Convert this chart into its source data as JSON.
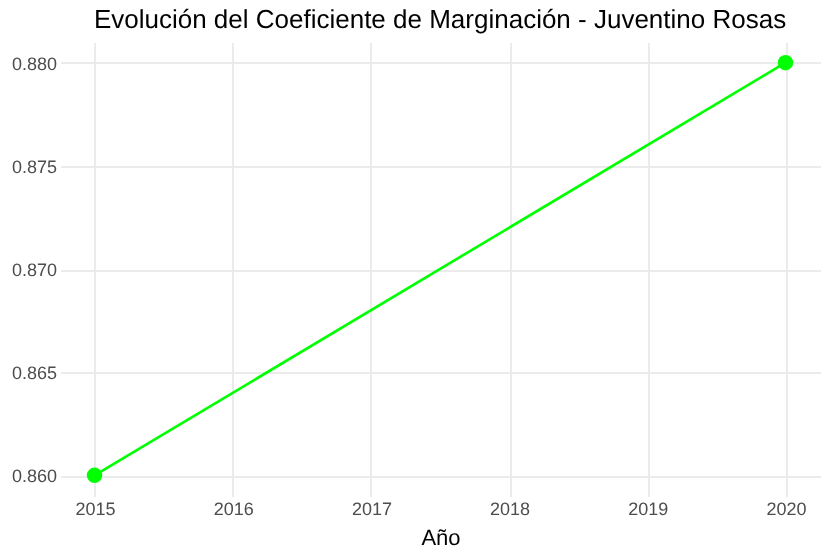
{
  "chart_data": {
    "type": "line",
    "title": "Evolución del Coeficiente de Marginación - Juventino Rosas",
    "xlabel": "Año",
    "x": [
      2015,
      2020
    ],
    "series": [
      {
        "color": "#00ff00",
        "values": [
          0.86,
          0.88
        ]
      }
    ],
    "xlim": [
      2014.75,
      2020.25
    ],
    "xticks": [
      2015,
      2016,
      2017,
      2018,
      2019,
      2020
    ],
    "ylim": [
      0.859,
      0.881
    ],
    "yticks": [
      {
        "value": 0.86,
        "label": "0.860"
      },
      {
        "value": 0.865,
        "label": "0.865"
      },
      {
        "value": 0.87,
        "label": "0.870"
      },
      {
        "value": 0.875,
        "label": "0.875"
      },
      {
        "value": 0.88,
        "label": "0.880"
      }
    ],
    "grid": true,
    "marker": "circle",
    "line_style": "solid"
  }
}
